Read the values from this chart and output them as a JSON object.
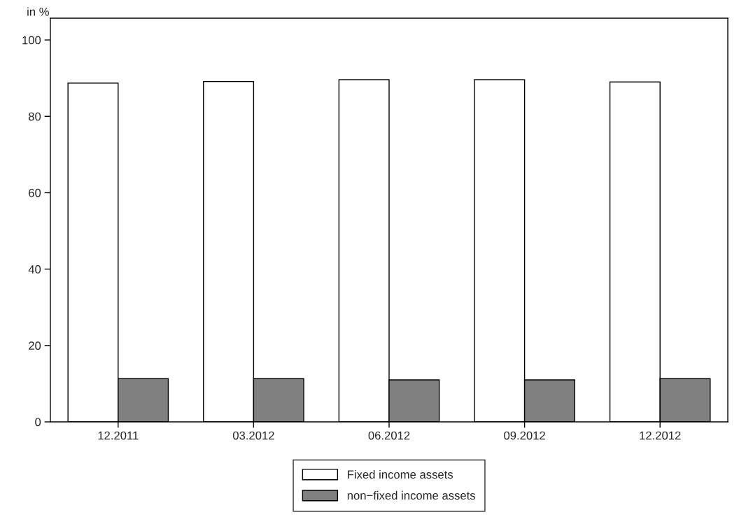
{
  "chart_data": {
    "type": "bar",
    "ylabel": "in %",
    "categories": [
      "12.2011",
      "03.2012",
      "06.2012",
      "09.2012",
      "12.2012"
    ],
    "series": [
      {
        "name": "Fixed income assets",
        "color": "#ffffff",
        "values": [
          88.7,
          89.1,
          89.6,
          89.6,
          89.0
        ]
      },
      {
        "name": "non−fixed income assets",
        "color": "#808080",
        "values": [
          11.3,
          11.3,
          11.0,
          11.0,
          11.3
        ]
      }
    ],
    "ylim": [
      0,
      105.7
    ],
    "yticks": [
      0,
      20,
      40,
      60,
      80,
      100
    ],
    "grid": false,
    "legend": "bottom"
  }
}
